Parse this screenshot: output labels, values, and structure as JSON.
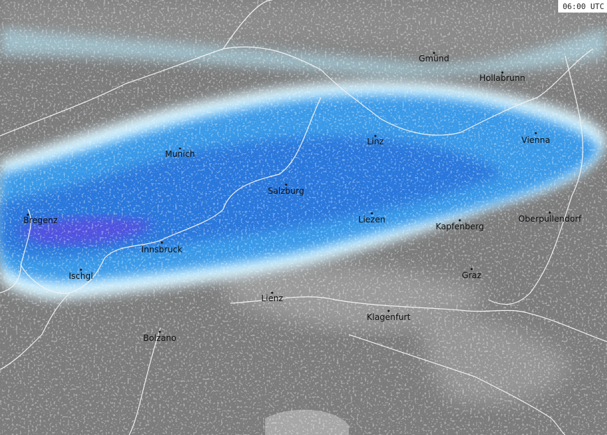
{
  "timestamp": "06:00 UTC",
  "cities": [
    {
      "name": "Gmünd"
    },
    {
      "name": "Hollabrunn"
    },
    {
      "name": "Munich"
    },
    {
      "name": "Linz"
    },
    {
      "name": "Vienna"
    },
    {
      "name": "Salzburg"
    },
    {
      "name": "Bregenz"
    },
    {
      "name": "Liezen"
    },
    {
      "name": "Kapfenberg"
    },
    {
      "name": "Oberpullendorf"
    },
    {
      "name": "Innsbruck"
    },
    {
      "name": "Ischgl"
    },
    {
      "name": "Graz"
    },
    {
      "name": "Lienz"
    },
    {
      "name": "Klagenfurt"
    },
    {
      "name": "Bolzano"
    }
  ]
}
